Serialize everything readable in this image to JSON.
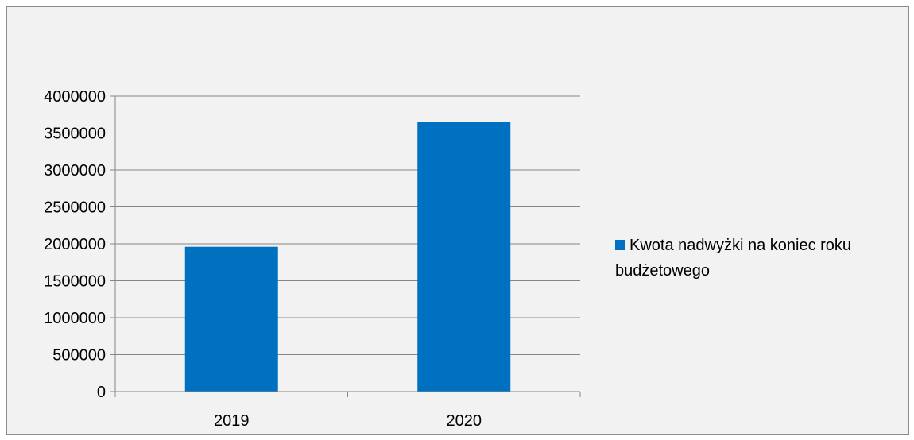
{
  "chart_data": {
    "type": "bar",
    "title": "",
    "xlabel": "",
    "ylabel": "",
    "categories": [
      "2019",
      "2020"
    ],
    "series": [
      {
        "name": "Kwota nadwyżki na koniec roku budżetowego",
        "values": [
          1960000,
          3650000
        ],
        "color": "#0070c0"
      }
    ],
    "ylim": [
      0,
      4000000
    ],
    "yticks": [
      "0",
      "500000",
      "1000000",
      "1500000",
      "2000000",
      "2500000",
      "3000000",
      "3500000",
      "4000000"
    ],
    "grid": true,
    "legend_position": "right"
  }
}
